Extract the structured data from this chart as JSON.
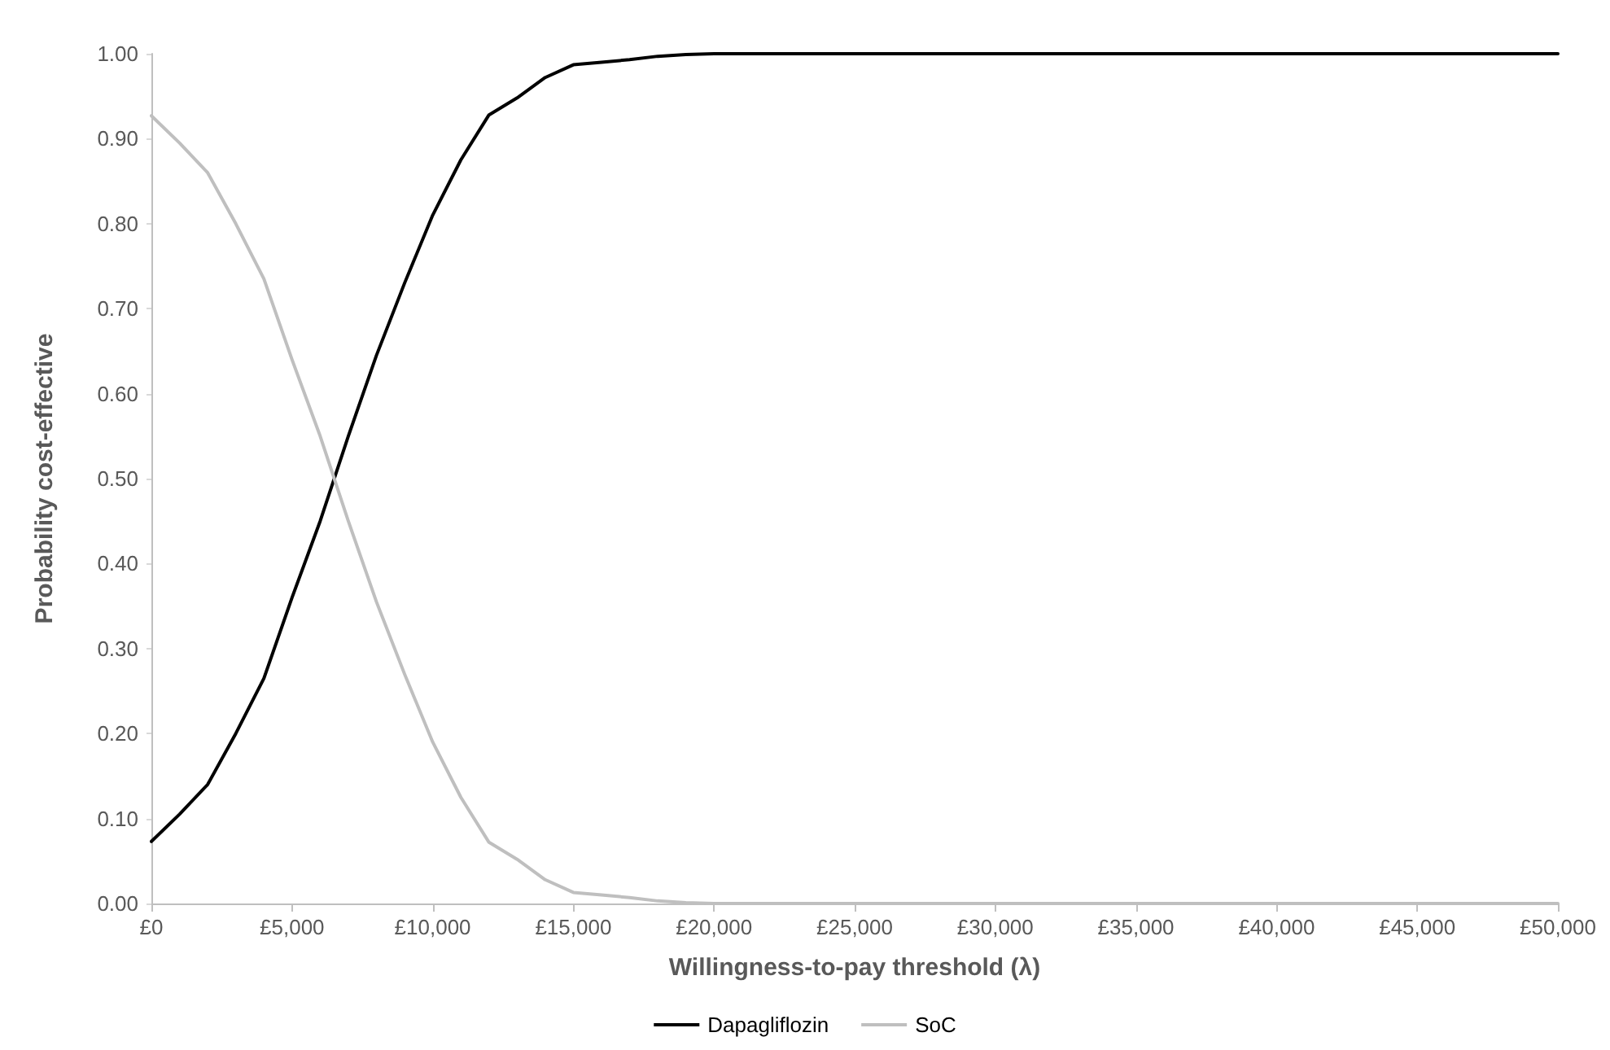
{
  "chart_data": {
    "type": "line",
    "xlabel": "Willingness-to-pay threshold (λ)",
    "ylabel": "Probability cost-effective",
    "x": [
      0,
      1000,
      2000,
      3000,
      4000,
      5000,
      6000,
      7000,
      8000,
      9000,
      10000,
      11000,
      12000,
      13000,
      14000,
      15000,
      16000,
      17000,
      18000,
      19000,
      20000,
      21000,
      22000,
      23000,
      24000,
      25000,
      26000,
      27000,
      28000,
      29000,
      30000,
      31000,
      32000,
      33000,
      34000,
      35000,
      36000,
      37000,
      38000,
      39000,
      40000,
      41000,
      42000,
      43000,
      44000,
      45000,
      46000,
      47000,
      48000,
      49000,
      50000
    ],
    "series": [
      {
        "name": "Dapagliflozin",
        "color": "#000000",
        "values": [
          0.073,
          0.105,
          0.14,
          0.2,
          0.265,
          0.36,
          0.45,
          0.55,
          0.645,
          0.73,
          0.81,
          0.875,
          0.928,
          0.948,
          0.972,
          0.987,
          0.99,
          0.993,
          0.997,
          0.999,
          1,
          1,
          1,
          1,
          1,
          1,
          1,
          1,
          1,
          1,
          1,
          1,
          1,
          1,
          1,
          1,
          1,
          1,
          1,
          1,
          1,
          1,
          1,
          1,
          1,
          1,
          1,
          1,
          1,
          1,
          1
        ]
      },
      {
        "name": "SoC",
        "color": "#bfbfbf",
        "values": [
          0.927,
          0.895,
          0.86,
          0.8,
          0.735,
          0.64,
          0.55,
          0.45,
          0.355,
          0.27,
          0.19,
          0.125,
          0.072,
          0.052,
          0.028,
          0.013,
          0.01,
          0.007,
          0.003,
          0.001,
          0,
          0,
          0,
          0,
          0,
          0,
          0,
          0,
          0,
          0,
          0,
          0,
          0,
          0,
          0,
          0,
          0,
          0,
          0,
          0,
          0,
          0,
          0,
          0,
          0,
          0,
          0,
          0,
          0,
          0,
          0
        ]
      }
    ],
    "xlim": [
      0,
      50000
    ],
    "xticks": [
      {
        "value": 0,
        "label": "£0"
      },
      {
        "value": 5000,
        "label": "£5,000"
      },
      {
        "value": 10000,
        "label": "£10,000"
      },
      {
        "value": 15000,
        "label": "£15,000"
      },
      {
        "value": 20000,
        "label": "£20,000"
      },
      {
        "value": 25000,
        "label": "£25,000"
      },
      {
        "value": 30000,
        "label": "£30,000"
      },
      {
        "value": 35000,
        "label": "£35,000"
      },
      {
        "value": 40000,
        "label": "£40,000"
      },
      {
        "value": 45000,
        "label": "£45,000"
      },
      {
        "value": 50000,
        "label": "£50,000"
      }
    ],
    "ylim": [
      0,
      1
    ],
    "yticks": [
      {
        "value": 0,
        "label": "0.00"
      },
      {
        "value": 0.1,
        "label": "0.10"
      },
      {
        "value": 0.2,
        "label": "0.20"
      },
      {
        "value": 0.3,
        "label": "0.30"
      },
      {
        "value": 0.4,
        "label": "0.40"
      },
      {
        "value": 0.5,
        "label": "0.50"
      },
      {
        "value": 0.6,
        "label": "0.60"
      },
      {
        "value": 0.7,
        "label": "0.70"
      },
      {
        "value": 0.8,
        "label": "0.80"
      },
      {
        "value": 0.9,
        "label": "0.90"
      },
      {
        "value": 1,
        "label": "1.00"
      }
    ],
    "grid": false,
    "legend": "bottom",
    "marker": "none",
    "line_style": "solid"
  }
}
